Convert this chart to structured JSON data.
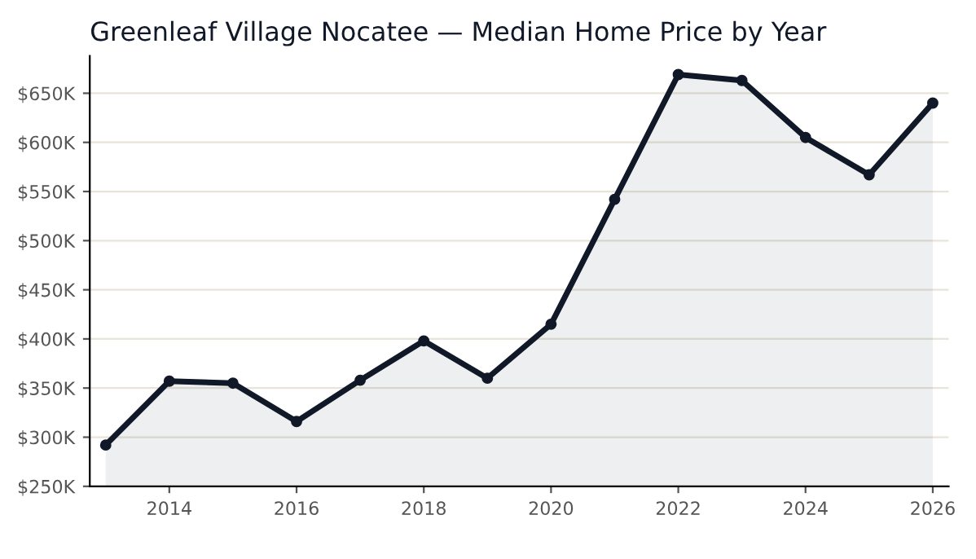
{
  "chart_data": {
    "type": "area",
    "title": "Greenleaf Village Nocatee — Median Home Price by Year",
    "x": [
      2013,
      2014,
      2015,
      2016,
      2017,
      2018,
      2019,
      2020,
      2021,
      2022,
      2023,
      2024,
      2025,
      2026
    ],
    "series": [
      {
        "color": "#111827",
        "values": [
          292,
          357,
          355,
          316,
          358,
          398,
          360,
          415,
          542,
          669,
          663,
          605,
          567,
          640
        ]
      }
    ],
    "xlim": [
      2012.75,
      2026.25
    ],
    "xticks": [
      2014,
      2016,
      2018,
      2020,
      2022,
      2024,
      2026
    ],
    "ylim": [
      250,
      688
    ],
    "yticks": [
      {
        "value": 250,
        "label": "$250K"
      },
      {
        "value": 300,
        "label": "$300K"
      },
      {
        "value": 350,
        "label": "$350K"
      },
      {
        "value": 400,
        "label": "$400K"
      },
      {
        "value": 450,
        "label": "$450K"
      },
      {
        "value": 500,
        "label": "$500K"
      },
      {
        "value": 550,
        "label": "$550K"
      },
      {
        "value": 600,
        "label": "$600K"
      },
      {
        "value": 650,
        "label": "$650K"
      }
    ],
    "grid": "y",
    "marker": "circle",
    "line_style": "solid",
    "legend": false
  }
}
